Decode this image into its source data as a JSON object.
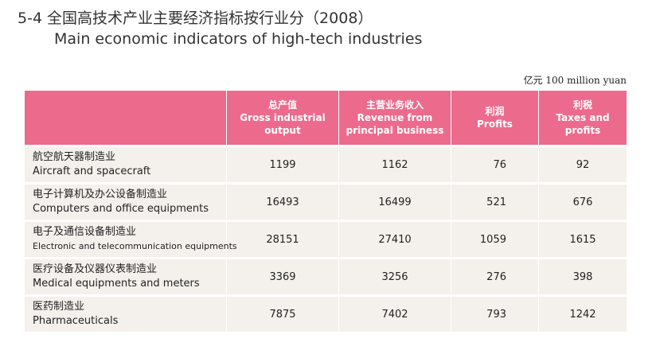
{
  "title": {
    "number": "5-4",
    "cn": "全国高技术产业主要经济指标按行业分（2008）",
    "en": "Main economic indicators of high-tech industries"
  },
  "unit": "亿元 100 million yuan",
  "table": {
    "headers": [
      {
        "cn": "",
        "en1": "",
        "en2": ""
      },
      {
        "cn": "总产值",
        "en1": "Gross industrial",
        "en2": "output"
      },
      {
        "cn": "主营业务收入",
        "en1": "Revenue from",
        "en2": "principal business"
      },
      {
        "cn": "利润",
        "en1": "Profits",
        "en2": ""
      },
      {
        "cn": "利税",
        "en1": "Taxes and",
        "en2": "profits"
      }
    ],
    "rows": [
      {
        "cn": "航空航天器制造业",
        "en": "Aircraft and spacecraft",
        "gross": "1199",
        "revenue": "1162",
        "profits": "76",
        "taxes": "92"
      },
      {
        "cn": "电子计算机及办公设备制造业",
        "en": "Computers and office equipments",
        "gross": "16493",
        "revenue": "16499",
        "profits": "521",
        "taxes": "676"
      },
      {
        "cn": "电子及通信设备制造业",
        "en": "Electronic and telecommunication equipments",
        "gross": "28151",
        "revenue": "27410",
        "profits": "1059",
        "taxes": "1615"
      },
      {
        "cn": "医疗设备及仪器仪表制造业",
        "en": "Medical equipments and meters",
        "gross": "3369",
        "revenue": "3256",
        "profits": "276",
        "taxes": "398"
      },
      {
        "cn": "医药制造业",
        "en": "Pharmaceuticals",
        "gross": "7875",
        "revenue": "7402",
        "profits": "793",
        "taxes": "1242"
      }
    ]
  },
  "colors": {
    "header_bg": "#ec6b8d",
    "row_bg": "#f4f1ec"
  }
}
